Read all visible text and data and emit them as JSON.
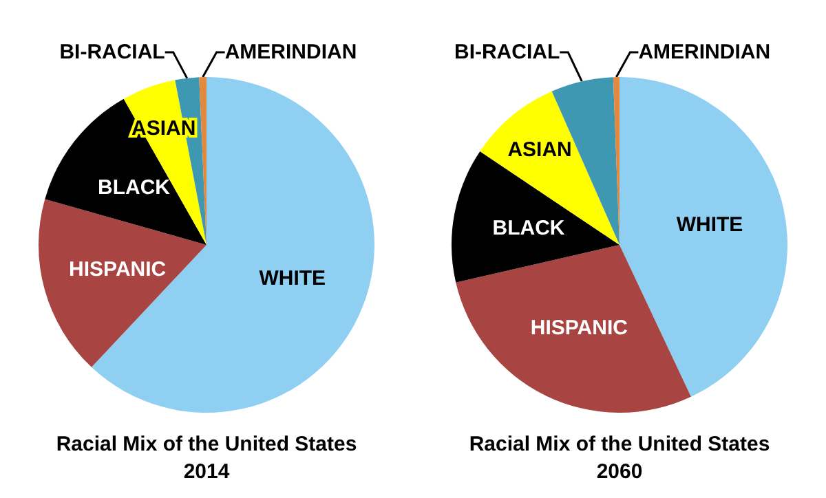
{
  "chart_data": [
    {
      "type": "pie",
      "title": "Racial Mix of the United States\n2014",
      "categories": [
        "WHITE",
        "HISPANIC",
        "BLACK",
        "ASIAN",
        "BI-RACIAL",
        "AMERINDIAN"
      ],
      "values": [
        62,
        17.4,
        12.4,
        5.2,
        2.3,
        0.7
      ],
      "colors": [
        "#8ecff2",
        "#a84441",
        "#000000",
        "#ffff00",
        "#3f98b2",
        "#e0893f"
      ]
    },
    {
      "type": "pie",
      "title": "Racial Mix of the United States\n2060",
      "categories": [
        "WHITE",
        "HISPANIC",
        "BLACK",
        "ASIAN",
        "BI-RACIAL",
        "AMERINDIAN"
      ],
      "values": [
        43,
        28.4,
        13,
        9,
        6,
        0.6
      ],
      "colors": [
        "#8ecff2",
        "#a84441",
        "#000000",
        "#ffff00",
        "#3f98b2",
        "#e0893f"
      ]
    }
  ]
}
